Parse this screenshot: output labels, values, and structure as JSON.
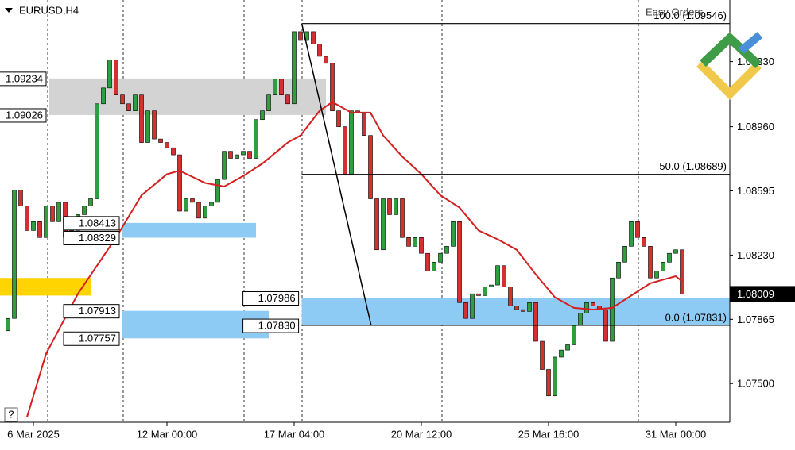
{
  "chart_data": {
    "type": "candlestick",
    "title": "EURUSD,H4",
    "watermark": "Easy Orders",
    "up_color": "#2f9e3f",
    "down_color": "#d3302f",
    "open": [
      1.078,
      1.0787,
      1.086,
      1.0851,
      1.0837,
      1.0842,
      1.0833,
      1.0851,
      1.0842,
      1.0853,
      1.0833,
      1.0837,
      1.0846,
      1.0851,
      1.0855,
      1.0909,
      1.0918,
      1.0934,
      1.0914,
      1.0909,
      1.0905,
      1.0914,
      1.0887,
      1.0905,
      1.0889,
      1.0887,
      1.0884,
      1.088,
      1.0848,
      1.0855,
      1.0853,
      1.0844,
      1.0851,
      1.0853,
      1.0866,
      1.0882,
      1.0878,
      1.088,
      1.0882,
      1.0878,
      1.09,
      1.0905,
      1.0914,
      1.0923,
      1.0914,
      1.0909,
      1.095,
      1.0945,
      1.095,
      1.0943,
      1.0936,
      1.0932,
      1.0905,
      1.0896,
      1.0869,
      1.0905,
      1.0904,
      1.0891,
      1.0855,
      1.0826,
      1.0855,
      1.0846,
      1.0855,
      1.0833,
      1.0828,
      1.0833,
      1.0824,
      1.0814,
      1.0819,
      1.0824,
      1.0828,
      1.0842,
      1.0796,
      1.0787,
      1.0801,
      1.08,
      1.0805,
      1.0806,
      1.0817,
      1.0805,
      1.0794,
      1.0792,
      1.0791,
      1.0796,
      1.0774,
      1.0758,
      1.0743,
      1.0765,
      1.0769,
      1.0772,
      1.0783,
      1.079,
      1.0796,
      1.0794,
      1.0792,
      1.0774,
      1.081,
      1.0819,
      1.0828,
      1.0842,
      1.0833,
      1.0828,
      1.081,
      1.0814,
      1.0819,
      1.0824,
      1.0826
    ],
    "close": [
      1.0787,
      1.086,
      1.0851,
      1.0837,
      1.0842,
      1.0833,
      1.0851,
      1.0842,
      1.0853,
      1.0833,
      1.0837,
      1.0846,
      1.0851,
      1.0855,
      1.0909,
      1.0918,
      1.0934,
      1.0914,
      1.0909,
      1.0905,
      1.0914,
      1.0887,
      1.0905,
      1.0889,
      1.0887,
      1.0884,
      1.088,
      1.0848,
      1.0855,
      1.0853,
      1.0844,
      1.0851,
      1.0853,
      1.0866,
      1.0882,
      1.0878,
      1.088,
      1.0882,
      1.0878,
      1.09,
      1.0905,
      1.0914,
      1.0923,
      1.0914,
      1.0909,
      1.095,
      1.0945,
      1.095,
      1.0943,
      1.0936,
      1.0932,
      1.0905,
      1.0896,
      1.0869,
      1.0905,
      1.0904,
      1.0891,
      1.0855,
      1.0826,
      1.0855,
      1.0846,
      1.0855,
      1.0833,
      1.0828,
      1.0833,
      1.0824,
      1.0814,
      1.0819,
      1.0824,
      1.0828,
      1.0842,
      1.0796,
      1.0787,
      1.0801,
      1.08,
      1.0805,
      1.0806,
      1.0817,
      1.0805,
      1.0794,
      1.0792,
      1.0791,
      1.0796,
      1.0774,
      1.0758,
      1.0743,
      1.0765,
      1.0769,
      1.0772,
      1.0783,
      1.079,
      1.0796,
      1.0794,
      1.0792,
      1.0774,
      1.081,
      1.0819,
      1.0828,
      1.0842,
      1.0833,
      1.0828,
      1.081,
      1.0814,
      1.0819,
      1.0824,
      1.0826,
      1.08009
    ],
    "ma": {
      "color": "#d42020",
      "x": [
        3,
        6,
        11,
        17,
        21,
        25,
        27,
        31,
        34,
        37,
        40,
        44,
        46,
        49,
        51,
        54,
        57,
        59,
        62,
        65,
        68,
        71,
        74,
        77,
        80,
        83,
        86,
        89,
        92,
        95,
        98,
        101,
        103,
        105,
        106
      ],
      "values": [
        1.0731,
        1.0767,
        1.0801,
        1.0833,
        1.0857,
        1.0869,
        1.0871,
        1.0864,
        1.0862,
        1.0868,
        1.0875,
        1.0887,
        1.0891,
        1.0905,
        1.091,
        1.0904,
        1.0904,
        1.0891,
        1.0879,
        1.0869,
        1.0857,
        1.085,
        1.0837,
        1.0832,
        1.0826,
        1.0812,
        1.0799,
        1.0793,
        1.0792,
        1.0793,
        1.08,
        1.0807,
        1.0809,
        1.0811,
        1.0808
      ]
    },
    "zones": [
      {
        "high": 1.081,
        "low": 1.08,
        "from": -1.3,
        "to": 13,
        "color": "#ffd400"
      },
      {
        "high": 1.09234,
        "low": 1.09026,
        "from": 6.5,
        "to": 50,
        "color": "#d3d3d3"
      },
      {
        "high": 1.08413,
        "low": 1.08329,
        "from": 18,
        "to": 39,
        "color": "#8ecbf4"
      },
      {
        "high": 1.07913,
        "low": 1.07757,
        "from": 18,
        "to": 41,
        "color": "#8ecbf4"
      },
      {
        "high": 1.07986,
        "low": {
          "value": 1.0783,
          "label": "1.07830"
        },
        "from": 46.2,
        "to": 113.6,
        "color": "#8ecbf4"
      }
    ],
    "fibo": {
      "from": 46.2,
      "to": 113.6,
      "trend_end": 57.1,
      "levels": [
        {
          "value": 1.09546,
          "label": "100.0 (1.09546)"
        },
        {
          "value": 1.08689,
          "label": "50.0 (1.08689)"
        },
        {
          "value": 1.07831,
          "label": "0.0 (1.07831)"
        }
      ]
    },
    "current": 1.08009,
    "ylim": [
      1.0728,
      1.0968
    ],
    "yticks": [
      {
        "value": 1.075,
        "label": "1.07500"
      },
      1.07865,
      {
        "value": 1.0823,
        "label": "1.08230"
      },
      1.08595,
      {
        "value": 1.0896,
        "label": "1.08960"
      },
      {
        "value": 1.0933,
        "label": "1.09330"
      }
    ],
    "xticks": [
      {
        "value": 4,
        "label": "6 Mar 2025"
      },
      {
        "value": 25,
        "label": "12 Mar 00:00"
      },
      {
        "value": 45,
        "label": "17 Mar 04:00"
      },
      {
        "value": 65,
        "label": "20 Mar 12:00"
      },
      {
        "value": 85,
        "label": "25 Mar 16:00"
      },
      {
        "value": 105,
        "label": "31 Mar 00:00"
      }
    ]
  }
}
